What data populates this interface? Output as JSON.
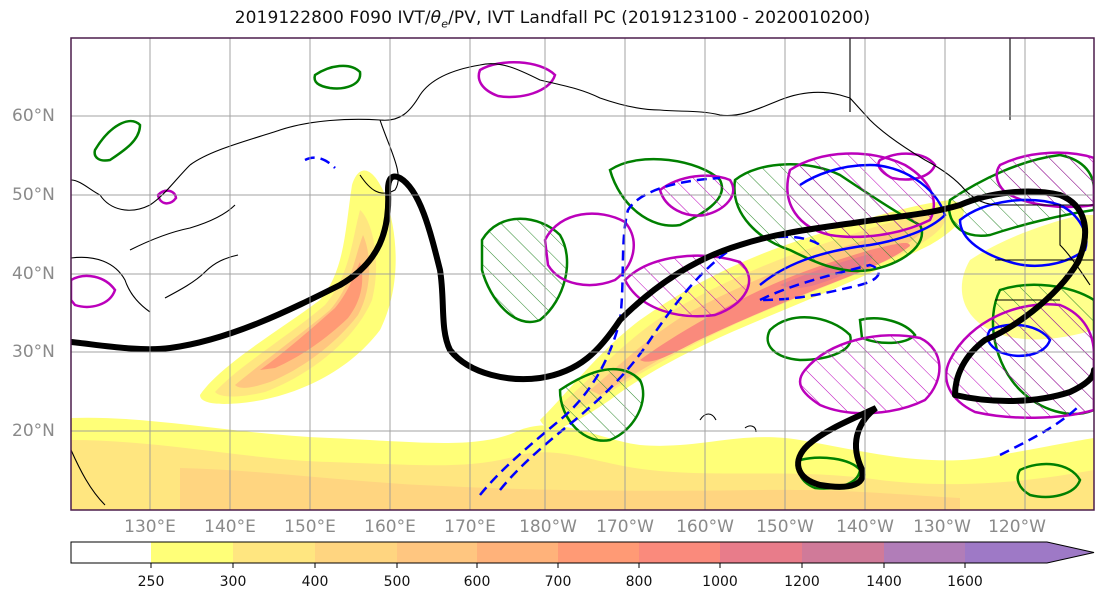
{
  "title": {
    "prefix": "2019122800 F090 IVT/",
    "theta": "θ",
    "theta_sub": "e",
    "suffix": "/PV, IVT Landfall PC (2019123100 - 2020010200)"
  },
  "lat_labels": [
    "60°N",
    "50°N",
    "40°N",
    "30°N",
    "20°N"
  ],
  "lon_labels": [
    "130°E",
    "140°E",
    "150°E",
    "160°E",
    "170°E",
    "180°W",
    "170°W",
    "160°W",
    "150°W",
    "140°W",
    "130°W",
    "120°W"
  ],
  "colorbar": {
    "ticks": [
      "250",
      "300",
      "400",
      "500",
      "600",
      "700",
      "800",
      "1000",
      "1200",
      "1400",
      "1600"
    ],
    "colors": [
      "#ffffff",
      "#ffff78",
      "#ffe680",
      "#ffd580",
      "#ffc680",
      "#ffb27a",
      "#ff9a75",
      "#fa8a7c",
      "#e87c8a",
      "#d07a99",
      "#b17db8",
      "#9e79c6"
    ]
  },
  "legend_colors": {
    "ivt_contour": "#000000",
    "theta_e_solid": "#0000ff",
    "pv_green": "#008000",
    "pc_magenta": "#bb00bb"
  }
}
